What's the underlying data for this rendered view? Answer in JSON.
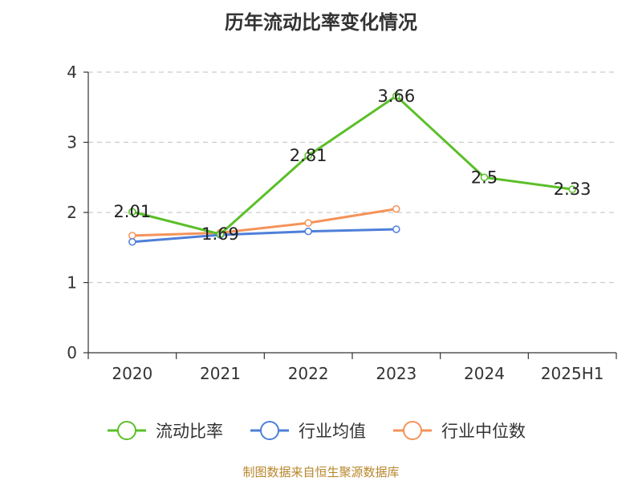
{
  "title": "历年流动比率变化情况",
  "footer": "制图数据来自恒生聚源数据库",
  "colors": {
    "current_ratio": "#5bbf2a",
    "industry_avg": "#4f7fd9",
    "industry_median": "#f4935a",
    "grid": "#cccccc",
    "axis": "#333333",
    "text": "#333333"
  },
  "chart_data": {
    "type": "line",
    "title": "历年流动比率变化情况",
    "categories": [
      "2020",
      "2021",
      "2022",
      "2023",
      "2024",
      "2025H1"
    ],
    "ylim": [
      0,
      4
    ],
    "yticks": [
      0,
      1,
      2,
      3,
      4
    ],
    "grid": true,
    "legend_position": "bottom",
    "series": [
      {
        "name": "流动比率",
        "color_key": "current_ratio",
        "values": [
          2.01,
          1.69,
          2.81,
          3.66,
          2.5,
          2.33
        ],
        "labels": true
      },
      {
        "name": "行业均值",
        "color_key": "industry_avg",
        "values": [
          1.58,
          1.68,
          1.73,
          1.76,
          null,
          null
        ],
        "labels": false
      },
      {
        "name": "行业中位数",
        "color_key": "industry_median",
        "values": [
          1.67,
          1.71,
          1.85,
          2.05,
          null,
          null
        ],
        "labels": false
      }
    ]
  }
}
